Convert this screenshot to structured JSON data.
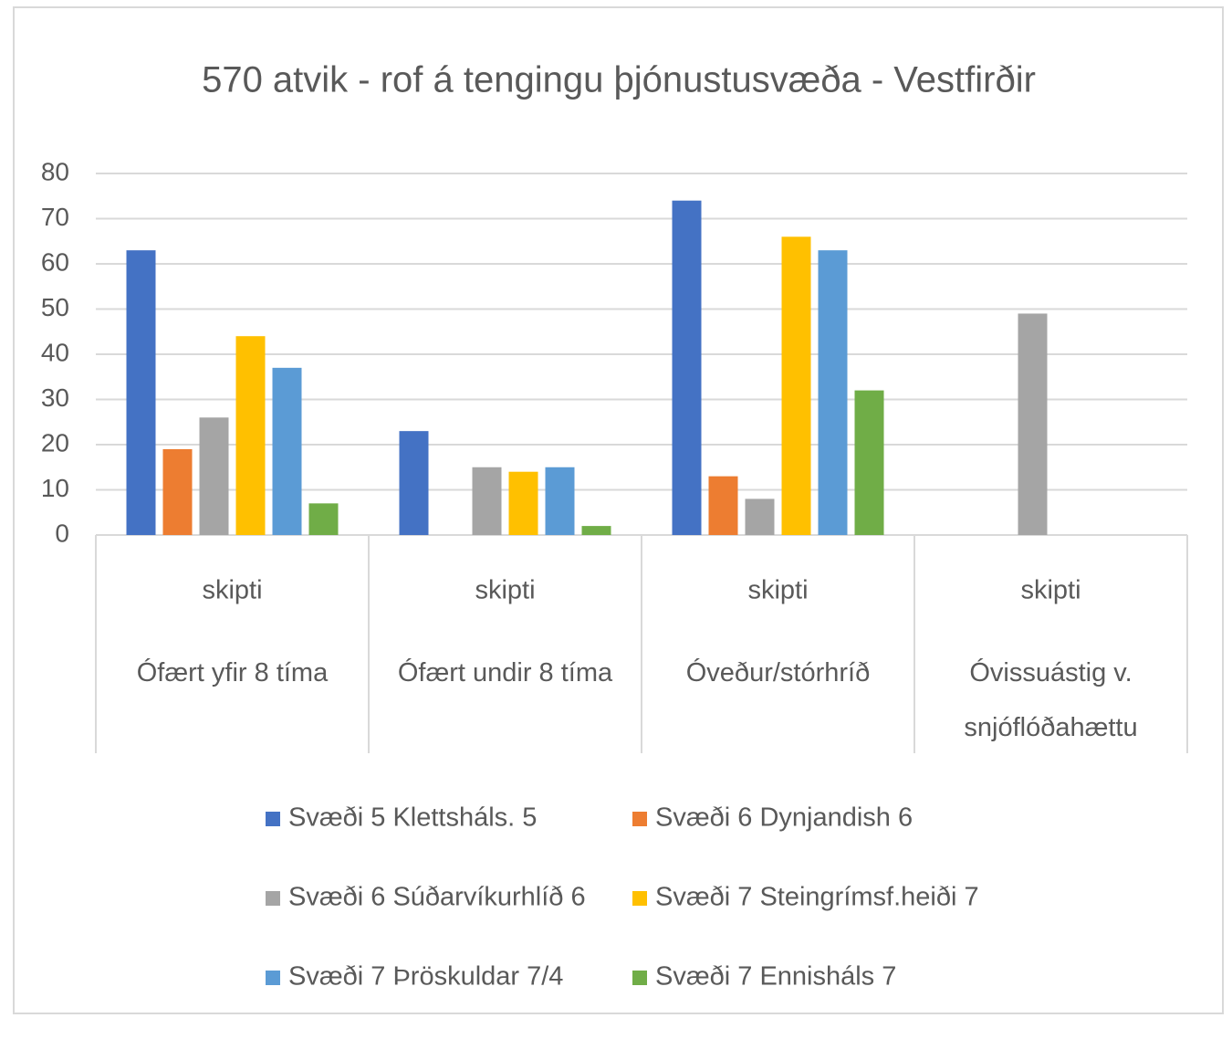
{
  "chart_data": {
    "type": "bar",
    "title": "570 atvik - rof á tengingu þjónustusvæða - Vestfirðir",
    "categories": [
      "skipti",
      "skipti",
      "skipti",
      "skipti"
    ],
    "category_groups": [
      "Ófært yfir 8 tíma",
      "Ófært undir 8 tíma",
      "Óveður/stórhríð",
      "Óvissuástig v. snjóflóðahættu"
    ],
    "series": [
      {
        "name": "Svæði 5 Klettsháls. 5",
        "color": "#4472c4",
        "values": [
          63,
          23,
          74,
          null
        ]
      },
      {
        "name": "Svæði 6 Dynjandish 6",
        "color": "#ed7d31",
        "values": [
          19,
          null,
          13,
          null
        ]
      },
      {
        "name": "Svæði 6 Súðarvíkurhlíð 6",
        "color": "#a5a5a5",
        "values": [
          26,
          15,
          8,
          49
        ]
      },
      {
        "name": "Svæði 7 Steingrímsf.heiði 7",
        "color": "#ffc000",
        "values": [
          44,
          14,
          66,
          null
        ]
      },
      {
        "name": "Svæði 7 Þröskuldar 7/4",
        "color": "#5b9bd5",
        "values": [
          37,
          15,
          63,
          null
        ]
      },
      {
        "name": "Svæði 7 Ennisháls 7",
        "color": "#70ad47",
        "values": [
          7,
          2,
          32,
          null
        ]
      }
    ],
    "ylim": [
      0,
      80
    ],
    "yticks": [
      0,
      10,
      20,
      30,
      40,
      50,
      60,
      70,
      80
    ],
    "grid": true,
    "legend": "bottom"
  }
}
